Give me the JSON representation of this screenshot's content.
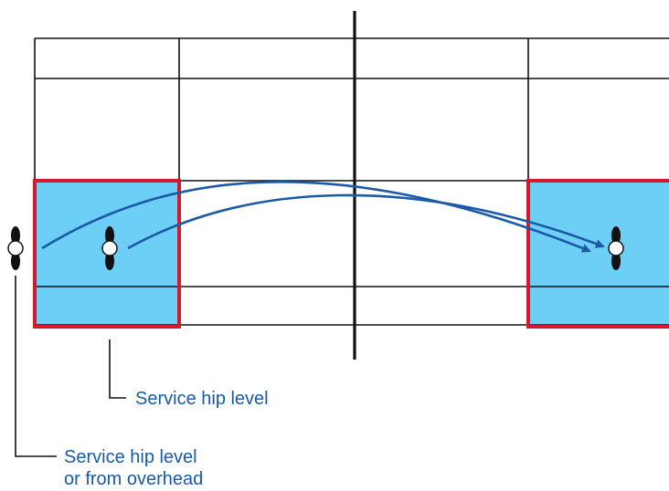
{
  "colors": {
    "background": "#ffffff",
    "line": "#111111",
    "service_box_fill": "#6dcff6",
    "service_box_border": "#d7192d",
    "arrow": "#1a5aa6",
    "player_marker": "#111111",
    "label_text": "#1a5aa6"
  },
  "icons": {
    "player_marker": "player-silhouette-icon",
    "arrow_head": "arrowhead-icon"
  },
  "labels": {
    "service_hip_level": "Service hip level",
    "service_hip_overhead_line1": "Service hip level",
    "service_hip_overhead_line2": "or from overhead"
  }
}
